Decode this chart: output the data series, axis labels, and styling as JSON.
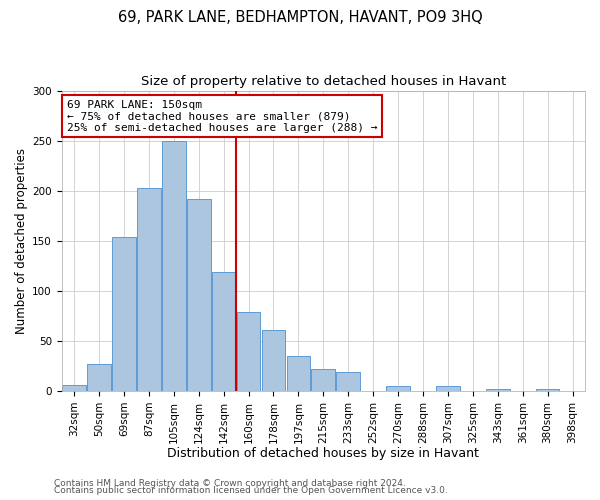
{
  "title": "69, PARK LANE, BEDHAMPTON, HAVANT, PO9 3HQ",
  "subtitle": "Size of property relative to detached houses in Havant",
  "xlabel": "Distribution of detached houses by size in Havant",
  "ylabel": "Number of detached properties",
  "categories": [
    "32sqm",
    "50sqm",
    "69sqm",
    "87sqm",
    "105sqm",
    "124sqm",
    "142sqm",
    "160sqm",
    "178sqm",
    "197sqm",
    "215sqm",
    "233sqm",
    "252sqm",
    "270sqm",
    "288sqm",
    "307sqm",
    "325sqm",
    "343sqm",
    "361sqm",
    "380sqm",
    "398sqm"
  ],
  "values": [
    6,
    27,
    154,
    203,
    250,
    192,
    119,
    79,
    61,
    35,
    22,
    19,
    0,
    5,
    0,
    5,
    0,
    2,
    0,
    2,
    0
  ],
  "bar_color": "#adc6e0",
  "bar_edge_color": "#5b9bd5",
  "vline_color": "#cc0000",
  "annotation_title": "69 PARK LANE: 150sqm",
  "annotation_line1": "← 75% of detached houses are smaller (879)",
  "annotation_line2": "25% of semi-detached houses are larger (288) →",
  "annotation_box_color": "#ffffff",
  "annotation_box_edge_color": "#cc0000",
  "footer1": "Contains HM Land Registry data © Crown copyright and database right 2024.",
  "footer2": "Contains public sector information licensed under the Open Government Licence v3.0.",
  "ylim": [
    0,
    300
  ],
  "title_fontsize": 10.5,
  "subtitle_fontsize": 9.5,
  "xlabel_fontsize": 9,
  "ylabel_fontsize": 8.5,
  "tick_fontsize": 7.5,
  "annotation_fontsize": 8,
  "footer_fontsize": 6.5,
  "background_color": "#ffffff",
  "grid_color": "#cccccc"
}
